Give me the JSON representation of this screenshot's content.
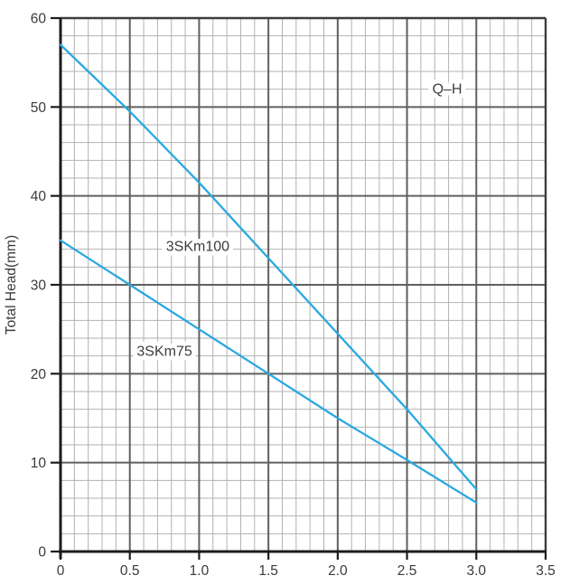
{
  "chart_data": {
    "type": "line",
    "title": "",
    "annotation": "Q–H",
    "annotation_at": [
      2.79,
      52.1
    ],
    "xlabel": "",
    "ylabel": "Total Head(mm)",
    "xlim": [
      0,
      3.5
    ],
    "ylim": [
      0,
      60
    ],
    "x_major_step": 0.5,
    "x_minor_step": 0.1,
    "y_major_step": 10,
    "y_minor_step": 2,
    "x_tick_labels": [
      "0",
      "0.5",
      "1.0",
      "1.5",
      "2.0",
      "2.5",
      "3.0",
      "3.5"
    ],
    "y_tick_labels": [
      "0",
      "10",
      "20",
      "30",
      "40",
      "50",
      "60"
    ],
    "grid": "major+minor",
    "legend_position": "inline-curve-labels",
    "colors": {
      "curve": "#29a9e0",
      "grid_minor": "#b2b2b2",
      "grid_major": "#606060",
      "axis": "#1c1c1c",
      "text": "#3a3a3a",
      "background": "#ffffff"
    },
    "series": [
      {
        "name": "3SKm100",
        "label_at": [
          0.99,
          34.4
        ],
        "x": [
          0,
          0.5,
          1.0,
          1.5,
          2.0,
          2.5,
          3.0
        ],
        "values": [
          57,
          49.5,
          41.5,
          33,
          24.5,
          16,
          7
        ]
      },
      {
        "name": "3SKm75",
        "label_at": [
          0.75,
          22.6
        ],
        "x": [
          0,
          0.5,
          1.0,
          1.5,
          2.0,
          2.5,
          3.0
        ],
        "values": [
          35,
          30,
          25,
          20,
          15,
          10.3,
          5.5
        ]
      }
    ]
  }
}
